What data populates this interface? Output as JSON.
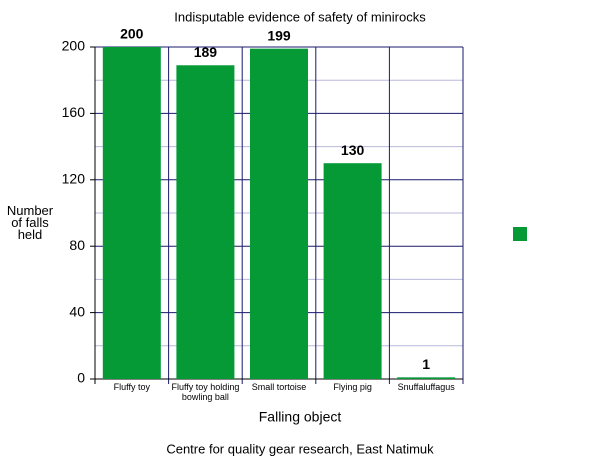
{
  "chart_data": {
    "type": "bar",
    "title": "Indisputable evidence of safety of minirocks",
    "x_label": "Falling object",
    "y_label": "Number of falls held",
    "footer": "Centre for quality gear research, East Natimuk",
    "categories": [
      "Fluffy toy",
      "Fluffy toy holding bowling ball",
      "Small tortoise",
      "Flying pig",
      "Snuffaluffagus"
    ],
    "values": [
      200,
      189,
      199,
      130,
      1
    ],
    "color": "#069a36",
    "ylim": [
      0,
      200
    ],
    "yticks": [
      0,
      40,
      80,
      120,
      160,
      200
    ],
    "minor_yticks": [
      20,
      60,
      100,
      140,
      180
    ],
    "grid": true
  }
}
